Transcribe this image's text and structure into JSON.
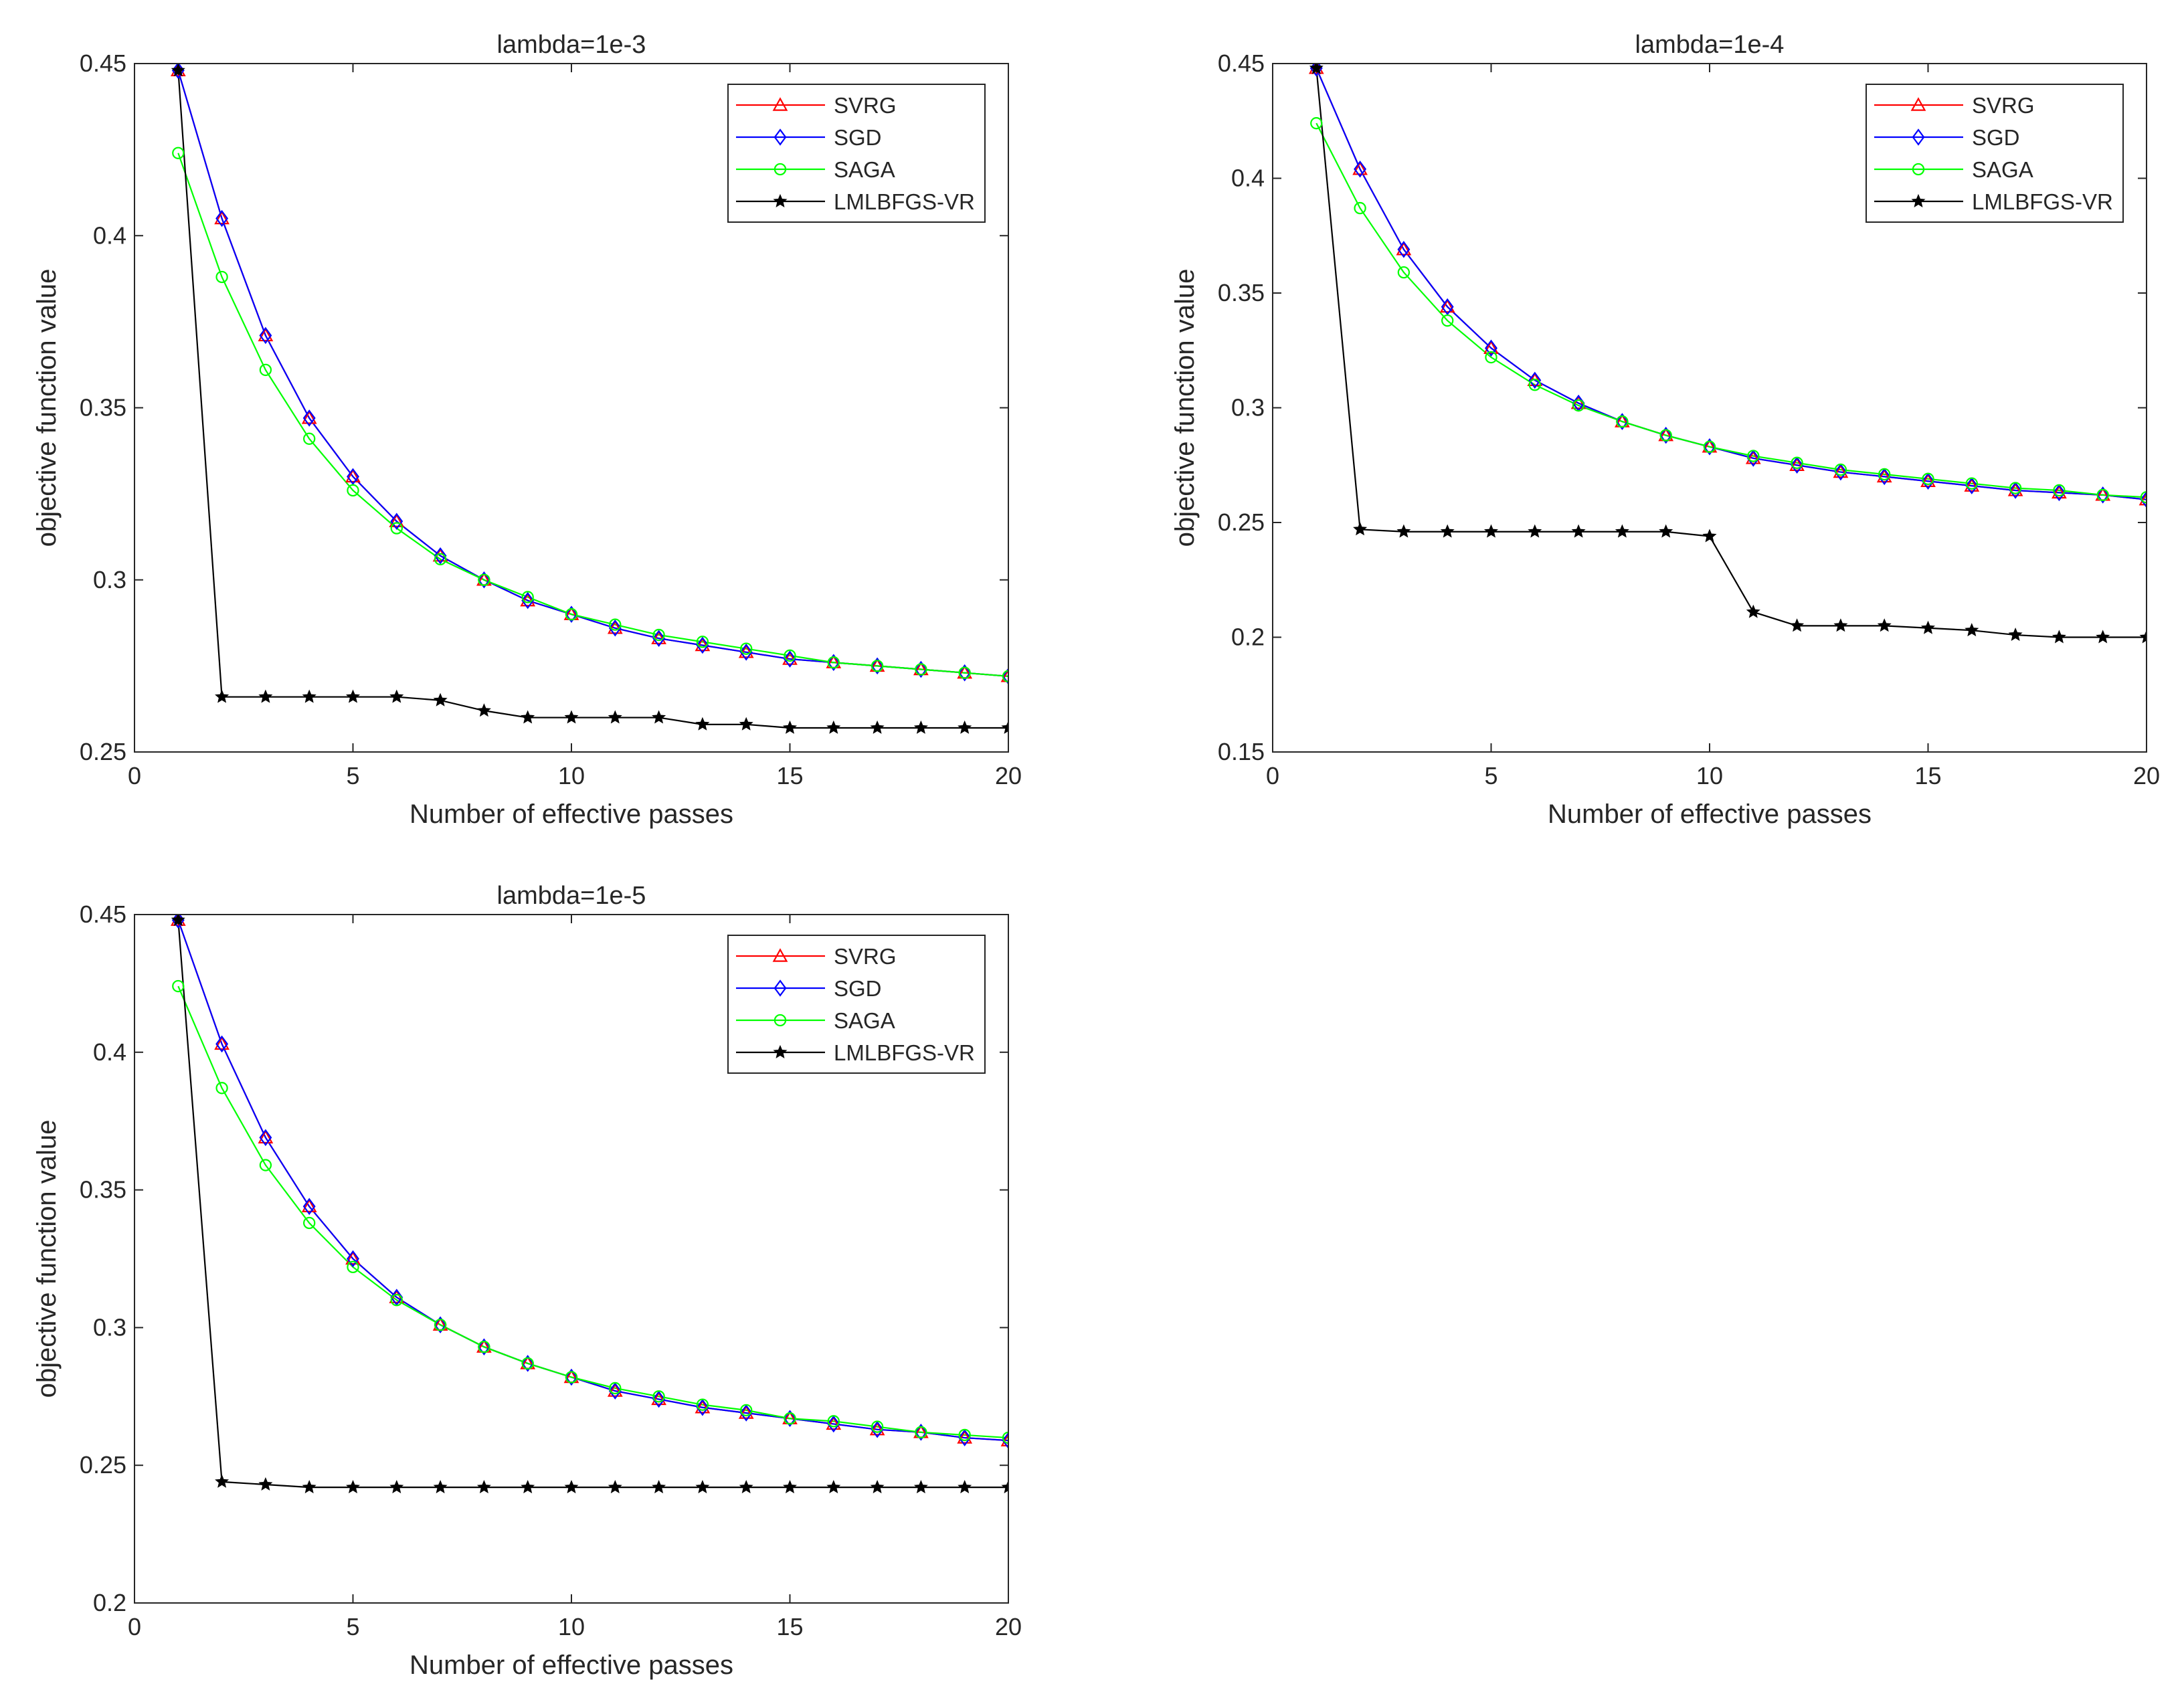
{
  "chart_data": [
    {
      "type": "line",
      "title": "lambda=1e-3",
      "xlabel": "Number of effective passes",
      "ylabel": "objective function value",
      "xlim": [
        0,
        20
      ],
      "ylim": [
        0.25,
        0.45
      ],
      "xticks": [
        0,
        5,
        10,
        15,
        20
      ],
      "yticks": [
        0.25,
        0.3,
        0.35,
        0.4,
        0.45
      ],
      "xtick_labels": [
        "0",
        "5",
        "10",
        "15",
        "20"
      ],
      "ytick_labels": [
        "0.25",
        "0.3",
        "0.35",
        "0.4",
        "0.45"
      ],
      "legend_position": "top-right",
      "x": [
        1,
        2,
        3,
        4,
        5,
        6,
        7,
        8,
        9,
        10,
        11,
        12,
        13,
        14,
        15,
        16,
        17,
        18,
        19,
        20
      ],
      "series": [
        {
          "name": "SVRG",
          "color": "#ff0000",
          "marker": "triangle",
          "values": [
            0.448,
            0.405,
            0.371,
            0.347,
            0.33,
            0.317,
            0.307,
            0.3,
            0.294,
            0.29,
            0.286,
            0.283,
            0.281,
            0.279,
            0.277,
            0.276,
            0.275,
            0.274,
            0.273,
            0.272
          ]
        },
        {
          "name": "SGD",
          "color": "#0000ff",
          "marker": "diamond",
          "values": [
            0.448,
            0.405,
            0.371,
            0.347,
            0.33,
            0.317,
            0.307,
            0.3,
            0.294,
            0.29,
            0.286,
            0.283,
            0.281,
            0.279,
            0.277,
            0.276,
            0.275,
            0.274,
            0.273,
            0.272
          ]
        },
        {
          "name": "SAGA",
          "color": "#00ff00",
          "marker": "circle",
          "values": [
            0.424,
            0.388,
            0.361,
            0.341,
            0.326,
            0.315,
            0.306,
            0.3,
            0.295,
            0.29,
            0.287,
            0.284,
            0.282,
            0.28,
            0.278,
            0.276,
            0.275,
            0.274,
            0.273,
            0.272
          ]
        },
        {
          "name": "LMLBFGS-VR",
          "color": "#000000",
          "marker": "star",
          "values": [
            0.448,
            0.266,
            0.266,
            0.266,
            0.266,
            0.266,
            0.265,
            0.262,
            0.26,
            0.26,
            0.26,
            0.26,
            0.258,
            0.258,
            0.257,
            0.257,
            0.257,
            0.257,
            0.257,
            0.257
          ]
        }
      ]
    },
    {
      "type": "line",
      "title": "lambda=1e-4",
      "xlabel": "Number of effective passes",
      "ylabel": "objective function value",
      "xlim": [
        0,
        20
      ],
      "ylim": [
        0.15,
        0.45
      ],
      "xticks": [
        0,
        5,
        10,
        15,
        20
      ],
      "yticks": [
        0.15,
        0.2,
        0.25,
        0.3,
        0.35,
        0.4,
        0.45
      ],
      "xtick_labels": [
        "0",
        "5",
        "10",
        "15",
        "20"
      ],
      "ytick_labels": [
        "0.15",
        "0.2",
        "0.25",
        "0.3",
        "0.35",
        "0.4",
        "0.45"
      ],
      "legend_position": "top-right",
      "x": [
        1,
        2,
        3,
        4,
        5,
        6,
        7,
        8,
        9,
        10,
        11,
        12,
        13,
        14,
        15,
        16,
        17,
        18,
        19,
        20
      ],
      "series": [
        {
          "name": "SVRG",
          "color": "#ff0000",
          "marker": "triangle",
          "values": [
            0.448,
            0.404,
            0.369,
            0.344,
            0.326,
            0.312,
            0.302,
            0.294,
            0.288,
            0.283,
            0.278,
            0.275,
            0.272,
            0.27,
            0.268,
            0.266,
            0.264,
            0.263,
            0.262,
            0.26
          ]
        },
        {
          "name": "SGD",
          "color": "#0000ff",
          "marker": "diamond",
          "values": [
            0.448,
            0.404,
            0.369,
            0.344,
            0.326,
            0.312,
            0.302,
            0.294,
            0.288,
            0.283,
            0.278,
            0.275,
            0.272,
            0.27,
            0.268,
            0.266,
            0.264,
            0.263,
            0.262,
            0.26
          ]
        },
        {
          "name": "SAGA",
          "color": "#00ff00",
          "marker": "circle",
          "values": [
            0.424,
            0.387,
            0.359,
            0.338,
            0.322,
            0.31,
            0.301,
            0.294,
            0.288,
            0.283,
            0.279,
            0.276,
            0.273,
            0.271,
            0.269,
            0.267,
            0.265,
            0.264,
            0.262,
            0.261
          ]
        },
        {
          "name": "LMLBFGS-VR",
          "color": "#000000",
          "marker": "star",
          "values": [
            0.448,
            0.247,
            0.246,
            0.246,
            0.246,
            0.246,
            0.246,
            0.246,
            0.246,
            0.244,
            0.211,
            0.205,
            0.205,
            0.205,
            0.204,
            0.203,
            0.201,
            0.2,
            0.2,
            0.2
          ]
        }
      ]
    },
    {
      "type": "line",
      "title": "lambda=1e-5",
      "xlabel": "Number of effective passes",
      "ylabel": "objective function value",
      "xlim": [
        0,
        20
      ],
      "ylim": [
        0.2,
        0.45
      ],
      "xticks": [
        0,
        5,
        10,
        15,
        20
      ],
      "yticks": [
        0.2,
        0.25,
        0.3,
        0.35,
        0.4,
        0.45
      ],
      "xtick_labels": [
        "0",
        "5",
        "10",
        "15",
        "20"
      ],
      "ytick_labels": [
        "0.2",
        "0.25",
        "0.3",
        "0.35",
        "0.4",
        "0.45"
      ],
      "legend_position": "top-right",
      "x": [
        1,
        2,
        3,
        4,
        5,
        6,
        7,
        8,
        9,
        10,
        11,
        12,
        13,
        14,
        15,
        16,
        17,
        18,
        19,
        20
      ],
      "series": [
        {
          "name": "SVRG",
          "color": "#ff0000",
          "marker": "triangle",
          "values": [
            0.448,
            0.403,
            0.369,
            0.344,
            0.325,
            0.311,
            0.301,
            0.293,
            0.287,
            0.282,
            0.277,
            0.274,
            0.271,
            0.269,
            0.267,
            0.265,
            0.263,
            0.262,
            0.26,
            0.259
          ]
        },
        {
          "name": "SGD",
          "color": "#0000ff",
          "marker": "diamond",
          "values": [
            0.448,
            0.403,
            0.369,
            0.344,
            0.325,
            0.311,
            0.301,
            0.293,
            0.287,
            0.282,
            0.277,
            0.274,
            0.271,
            0.269,
            0.267,
            0.265,
            0.263,
            0.262,
            0.26,
            0.259
          ]
        },
        {
          "name": "SAGA",
          "color": "#00ff00",
          "marker": "circle",
          "values": [
            0.424,
            0.387,
            0.359,
            0.338,
            0.322,
            0.31,
            0.301,
            0.293,
            0.287,
            0.282,
            0.278,
            0.275,
            0.272,
            0.27,
            0.267,
            0.266,
            0.264,
            0.262,
            0.261,
            0.26
          ]
        },
        {
          "name": "LMLBFGS-VR",
          "color": "#000000",
          "marker": "star",
          "values": [
            0.448,
            0.244,
            0.243,
            0.242,
            0.242,
            0.242,
            0.242,
            0.242,
            0.242,
            0.242,
            0.242,
            0.242,
            0.242,
            0.242,
            0.242,
            0.242,
            0.242,
            0.242,
            0.242,
            0.242
          ]
        }
      ]
    }
  ]
}
